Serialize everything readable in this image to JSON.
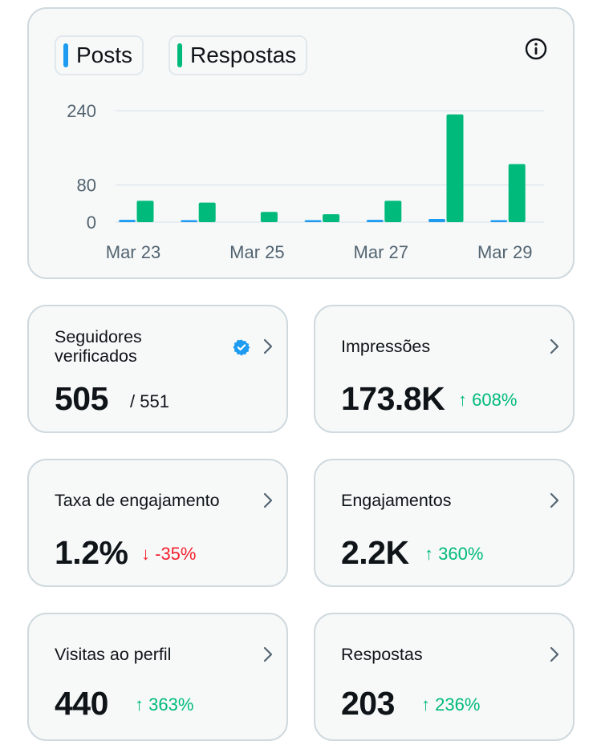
{
  "legend": [
    {
      "label": "Posts",
      "color": "#1d9bf0"
    },
    {
      "label": "Respostas",
      "color": "#00ba7c"
    }
  ],
  "chart_data": {
    "type": "bar",
    "categories": [
      "Mar 23",
      "Mar 24",
      "Mar 25",
      "Mar 26",
      "Mar 27",
      "Mar 28",
      "Mar 29"
    ],
    "x_tick_labels": [
      "Mar 23",
      "Mar 25",
      "Mar 27",
      "Mar 29"
    ],
    "y_ticks": [
      0,
      80,
      240
    ],
    "ylim": [
      0,
      240
    ],
    "grid": true,
    "series": [
      {
        "name": "Posts",
        "color": "#1d9bf0",
        "values": [
          5,
          2,
          0,
          2,
          5,
          7,
          4
        ]
      },
      {
        "name": "Respostas",
        "color": "#00ba7c",
        "values": [
          46,
          42,
          22,
          17,
          46,
          232,
          125
        ]
      }
    ]
  },
  "stats": {
    "verified_followers": {
      "label": "Seguidores verificados",
      "value": "505",
      "total": "/ 551"
    },
    "impressions": {
      "label": "Impressões",
      "value": "173.8K",
      "delta": "608%",
      "direction": "up"
    },
    "engagement_rate": {
      "label": "Taxa de engajamento",
      "value": "1.2%",
      "delta": "-35%",
      "direction": "down"
    },
    "engagements": {
      "label": "Engajamentos",
      "value": "2.2K",
      "delta": "360%",
      "direction": "up"
    },
    "profile_visits": {
      "label": "Visitas ao perfil",
      "value": "440",
      "delta": "363%",
      "direction": "up"
    },
    "replies": {
      "label": "Respostas",
      "value": "203",
      "delta": "236%",
      "direction": "up"
    }
  },
  "icons": {
    "info": "info-icon",
    "chevron": "chevron-right-icon",
    "verified": "verified-badge-icon",
    "arrow_up": "↑",
    "arrow_down": "↓"
  },
  "colors": {
    "up": "#00ba7c",
    "down": "#f4212e",
    "posts": "#1d9bf0",
    "replies": "#00ba7c"
  }
}
